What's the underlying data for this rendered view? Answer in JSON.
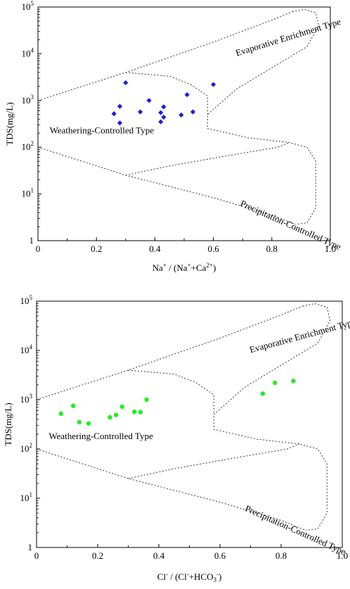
{
  "chart_data": [
    {
      "type": "scatter",
      "yscale": "log",
      "xlim": [
        0,
        1.0
      ],
      "ylim": [
        1,
        100000
      ],
      "xticks": [
        "0",
        "0.2",
        "0.4",
        "0.6",
        "0.8",
        "1.0"
      ],
      "yticks": [
        "1",
        "10",
        "100",
        "1000",
        "10000",
        "100000"
      ],
      "ylabel": "TDS(mg/L)",
      "xlabel": {
        "base": "Na",
        "sup1": "+",
        "mid": " / (Na",
        "sup2": "+",
        "mid2": "+Ca",
        "sup3": "2+",
        "end": ")"
      },
      "marker": "diamond",
      "color": "#1f1fcc",
      "regions": [
        "Evaporative Enrichment Type",
        "Weathering-Controlled Type",
        "Precipitation-Controlled Type"
      ],
      "points": [
        {
          "x": 0.26,
          "y": 520
        },
        {
          "x": 0.28,
          "y": 330
        },
        {
          "x": 0.28,
          "y": 750
        },
        {
          "x": 0.3,
          "y": 2400
        },
        {
          "x": 0.35,
          "y": 570
        },
        {
          "x": 0.38,
          "y": 1000
        },
        {
          "x": 0.42,
          "y": 550
        },
        {
          "x": 0.42,
          "y": 350
        },
        {
          "x": 0.43,
          "y": 440
        },
        {
          "x": 0.43,
          "y": 730
        },
        {
          "x": 0.49,
          "y": 490
        },
        {
          "x": 0.51,
          "y": 1330
        },
        {
          "x": 0.53,
          "y": 570
        },
        {
          "x": 0.6,
          "y": 2200
        }
      ]
    },
    {
      "type": "scatter",
      "yscale": "log",
      "xlim": [
        0,
        1.0
      ],
      "ylim": [
        1,
        100000
      ],
      "xticks": [
        "0",
        "0.2",
        "0.4",
        "0.6",
        "0.8",
        "1.0"
      ],
      "yticks": [
        "1",
        "10",
        "100",
        "1000",
        "10000",
        "100000"
      ],
      "ylabel": "TDS(mg/L)",
      "xlabel": {
        "base": "Cl",
        "sup1": "-",
        "mid": " / (Cl",
        "sup2": "-",
        "mid2": "+HCO",
        "sub": "3",
        "sup3": "-",
        "end": ")"
      },
      "marker": "circle",
      "color": "#22ee22",
      "regions": [
        "Evaporative Enrichment Type",
        "Weathering-Controlled Type",
        "Precipitation-Controlled Type"
      ],
      "points": [
        {
          "x": 0.08,
          "y": 520
        },
        {
          "x": 0.12,
          "y": 750
        },
        {
          "x": 0.14,
          "y": 350
        },
        {
          "x": 0.17,
          "y": 330
        },
        {
          "x": 0.24,
          "y": 440
        },
        {
          "x": 0.26,
          "y": 490
        },
        {
          "x": 0.28,
          "y": 720
        },
        {
          "x": 0.32,
          "y": 570
        },
        {
          "x": 0.34,
          "y": 560
        },
        {
          "x": 0.36,
          "y": 1000
        },
        {
          "x": 0.74,
          "y": 1330
        },
        {
          "x": 0.78,
          "y": 2200
        },
        {
          "x": 0.84,
          "y": 2400
        }
      ]
    }
  ]
}
